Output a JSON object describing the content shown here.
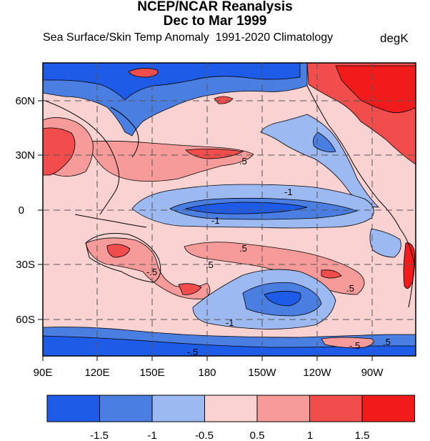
{
  "header": {
    "title_line1": "NCEP/NCAR Reanalysis",
    "title_line2": "Dec to Mar 1999",
    "subtitle": "Sea Surface/Skin Temp Anomaly  1991-2020 Climatology",
    "units": "degK"
  },
  "map": {
    "lon_ticks": [
      "90E",
      "120E",
      "150E",
      "180",
      "150W",
      "120W",
      "90W"
    ],
    "lat_ticks": [
      "60N",
      "30N",
      "0",
      "30S",
      "60S"
    ],
    "contour_labels": [
      "-1",
      "-1",
      ".5",
      ".5",
      ".5",
      "-.5",
      "-1",
      ".5",
      "-.5",
      "-.5",
      ".5"
    ],
    "grid": "dashed"
  },
  "colorbar": {
    "tick_labels": [
      "-1.5",
      "-1",
      "-0.5",
      "0.5",
      "1",
      "1.5"
    ],
    "bins": [
      {
        "range": "< -1.5",
        "color": "#1e5be6"
      },
      {
        "range": "-1.5 to -1",
        "color": "#4a7ee0"
      },
      {
        "range": "-1 to -0.5",
        "color": "#9db9f2"
      },
      {
        "range": "-0.5 to 0.5",
        "color": "#fbd2d2"
      },
      {
        "range": "0.5 to 1",
        "color": "#f79a9a"
      },
      {
        "range": "1 to 1.5",
        "color": "#f14d4d"
      },
      {
        "range": "> 1.5",
        "color": "#f21b1b"
      }
    ]
  },
  "colors": {
    "neutral": "#fbd2d2",
    "cool1": "#9db9f2",
    "cool2": "#4a7ee0",
    "cool3": "#1e5be6",
    "warm1": "#f79a9a",
    "warm2": "#f14d4d",
    "warm3": "#f21b1b"
  }
}
